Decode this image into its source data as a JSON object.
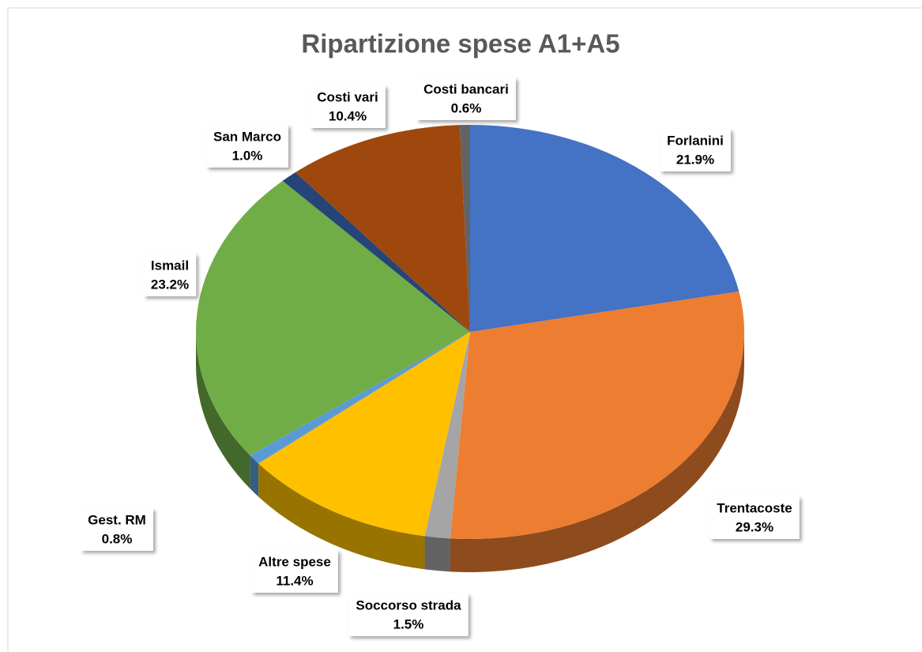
{
  "chart_data": {
    "type": "pie",
    "title": "Ripartizione spese A1+A5",
    "categories": [
      "Forlanini",
      "Trentacoste",
      "Soccorso strada",
      "Altre spese",
      "Gest. RM",
      "Ismail",
      "San Marco",
      "Costi vari",
      "Costi bancari"
    ],
    "values": [
      21.9,
      29.3,
      1.5,
      11.4,
      0.8,
      23.2,
      1.0,
      10.4,
      0.6
    ],
    "value_labels": [
      "21.9%",
      "29.3%",
      "1.5%",
      "11.4%",
      "0.8%",
      "23.2%",
      "1.0%",
      "10.4%",
      "0.6%"
    ],
    "colors": [
      "#4472c4",
      "#ed7d31",
      "#a5a5a5",
      "#ffc000",
      "#5b9bd5",
      "#70ad47",
      "#264478",
      "#9e480e",
      "#636363"
    ]
  }
}
